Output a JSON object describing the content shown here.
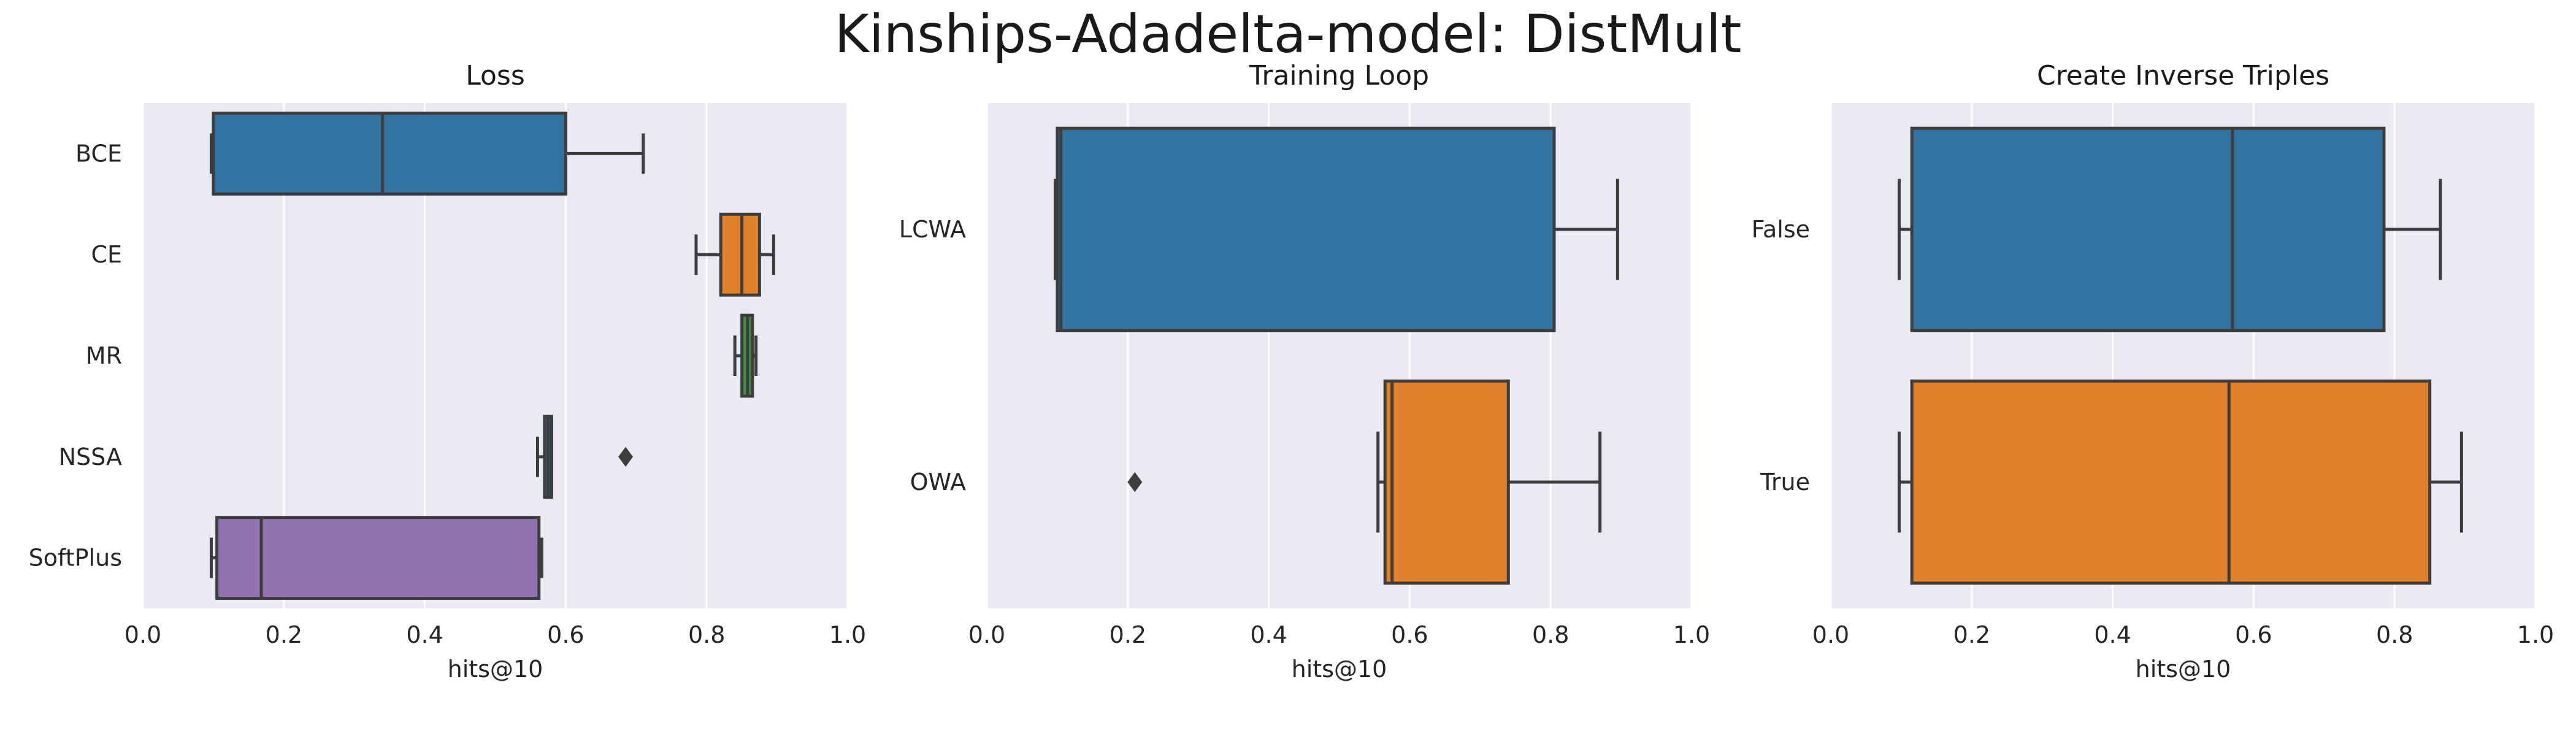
{
  "figure": {
    "title": "Kinships-Adadelta-model: DistMult"
  },
  "colors": {
    "panel_bg": "#EAEAF2",
    "grid": "#FFFFFF",
    "box_edge": "#3D3D3D",
    "blue": "#3274A1",
    "orange": "#E1812C",
    "green": "#3A923A",
    "purple": "#9372B2"
  },
  "chart_data": [
    {
      "type": "boxplot",
      "title": "Loss",
      "xlabel": "hits@10",
      "ylabel": "",
      "xlim": [
        0.0,
        1.0
      ],
      "xticks": [
        "0.0",
        "0.2",
        "0.4",
        "0.6",
        "0.8",
        "1.0"
      ],
      "grid": true,
      "orientation": "horizontal",
      "categories": [
        "BCE",
        "CE",
        "MR",
        "NSSA",
        "SoftPlus"
      ],
      "boxes": [
        {
          "label": "BCE",
          "whisker_low": 0.097,
          "q1": 0.1,
          "median": 0.34,
          "q3": 0.6,
          "whisker_high": 0.71,
          "outliers": [],
          "color": "#3274A1"
        },
        {
          "label": "CE",
          "whisker_low": 0.785,
          "q1": 0.82,
          "median": 0.85,
          "q3": 0.875,
          "whisker_high": 0.895,
          "outliers": [],
          "color": "#E1812C"
        },
        {
          "label": "MR",
          "whisker_low": 0.84,
          "q1": 0.85,
          "median": 0.858,
          "q3": 0.865,
          "whisker_high": 0.87,
          "outliers": [],
          "color": "#3A923A"
        },
        {
          "label": "NSSA",
          "whisker_low": 0.56,
          "q1": 0.57,
          "median": 0.575,
          "q3": 0.58,
          "whisker_high": 0.58,
          "outliers": [
            0.685
          ],
          "color": "#3274A1"
        },
        {
          "label": "SoftPlus",
          "whisker_low": 0.097,
          "q1": 0.105,
          "median": 0.168,
          "q3": 0.562,
          "whisker_high": 0.566,
          "outliers": [],
          "color": "#9372B2"
        }
      ]
    },
    {
      "type": "boxplot",
      "title": "Training Loop",
      "xlabel": "hits@10",
      "ylabel": "",
      "xlim": [
        0.0,
        1.0
      ],
      "xticks": [
        "0.0",
        "0.2",
        "0.4",
        "0.6",
        "0.8",
        "1.0"
      ],
      "grid": true,
      "orientation": "horizontal",
      "categories": [
        "LCWA",
        "OWA"
      ],
      "boxes": [
        {
          "label": "LCWA",
          "whisker_low": 0.097,
          "q1": 0.1,
          "median": 0.105,
          "q3": 0.805,
          "whisker_high": 0.895,
          "outliers": [],
          "color": "#3274A1"
        },
        {
          "label": "OWA",
          "whisker_low": 0.555,
          "q1": 0.565,
          "median": 0.575,
          "q3": 0.74,
          "whisker_high": 0.87,
          "outliers": [
            0.21
          ],
          "color": "#E1812C"
        }
      ]
    },
    {
      "type": "boxplot",
      "title": "Create Inverse Triples",
      "xlabel": "hits@10",
      "ylabel": "",
      "xlim": [
        0.0,
        1.0
      ],
      "xticks": [
        "0.0",
        "0.2",
        "0.4",
        "0.6",
        "0.8",
        "1.0"
      ],
      "grid": true,
      "orientation": "horizontal",
      "categories": [
        "False",
        "True"
      ],
      "boxes": [
        {
          "label": "False",
          "whisker_low": 0.097,
          "q1": 0.115,
          "median": 0.57,
          "q3": 0.785,
          "whisker_high": 0.865,
          "outliers": [],
          "color": "#3274A1"
        },
        {
          "label": "True",
          "whisker_low": 0.097,
          "q1": 0.115,
          "median": 0.565,
          "q3": 0.85,
          "whisker_high": 0.895,
          "outliers": [],
          "color": "#E1812C"
        }
      ]
    }
  ]
}
